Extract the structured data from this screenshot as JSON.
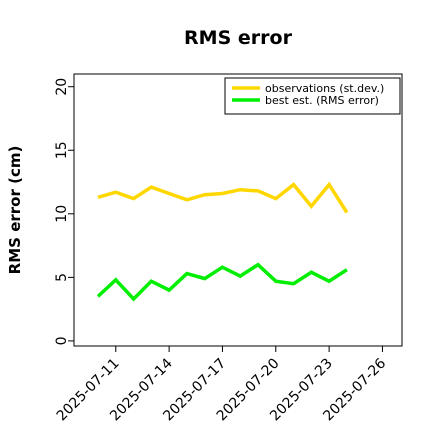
{
  "chart_data": {
    "type": "line",
    "title": "RMS error",
    "ylabel": "RMS error (cm)",
    "xlabel": "",
    "ylim": [
      0,
      21
    ],
    "yticks": [
      0,
      5,
      10,
      15,
      20
    ],
    "x": [
      "2025-07-10",
      "2025-07-11",
      "2025-07-12",
      "2025-07-13",
      "2025-07-14",
      "2025-07-15",
      "2025-07-16",
      "2025-07-17",
      "2025-07-18",
      "2025-07-19",
      "2025-07-20",
      "2025-07-21",
      "2025-07-22",
      "2025-07-23",
      "2025-07-24"
    ],
    "xtick_labels": [
      "2025-07-11",
      "2025-07-14",
      "2025-07-17",
      "2025-07-20",
      "2025-07-23",
      "2025-07-26"
    ],
    "xtick_colors": [
      "#000000",
      "#000000",
      "#228b22",
      "#000000",
      "#000000",
      "#000000"
    ],
    "series": [
      {
        "name": "observations (st.dev.)",
        "color": "#ffd700",
        "values": [
          11.3,
          11.7,
          11.2,
          12.1,
          11.6,
          11.1,
          11.5,
          11.6,
          11.9,
          11.8,
          11.2,
          12.3,
          10.6,
          12.3,
          10.1
        ]
      },
      {
        "name": "best est. (RMS error)",
        "color": "#00ee00",
        "values": [
          3.5,
          4.8,
          3.3,
          4.7,
          4.0,
          5.3,
          4.9,
          5.8,
          5.1,
          6.0,
          4.7,
          4.5,
          5.4,
          4.7,
          5.6
        ]
      }
    ],
    "legend_position": "top-right",
    "grid": false
  }
}
